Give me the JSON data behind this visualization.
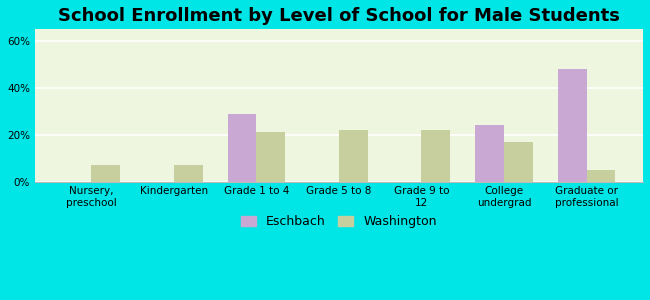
{
  "title": "School Enrollment by Level of School for Male Students",
  "categories": [
    "Nursery,\npreschool",
    "Kindergarten",
    "Grade 1 to 4",
    "Grade 5 to 8",
    "Grade 9 to\n12",
    "College\nundergrad",
    "Graduate or\nprofessional"
  ],
  "eschbach": [
    0,
    0,
    29,
    0,
    0,
    24,
    48
  ],
  "washington": [
    7,
    7,
    21,
    22,
    22,
    17,
    5
  ],
  "eschbach_color": "#c9a8d4",
  "washington_color": "#c8cf9f",
  "background_outer": "#00e5e5",
  "background_inner": "#eef6e0",
  "title_fontsize": 13,
  "tick_fontsize": 7.5,
  "legend_fontsize": 9,
  "ylim": [
    0,
    65
  ],
  "yticks": [
    0,
    20,
    40,
    60
  ],
  "ytick_labels": [
    "0%",
    "20%",
    "40%",
    "60%"
  ],
  "bar_width": 0.35,
  "legend_labels": [
    "Eschbach",
    "Washington"
  ]
}
